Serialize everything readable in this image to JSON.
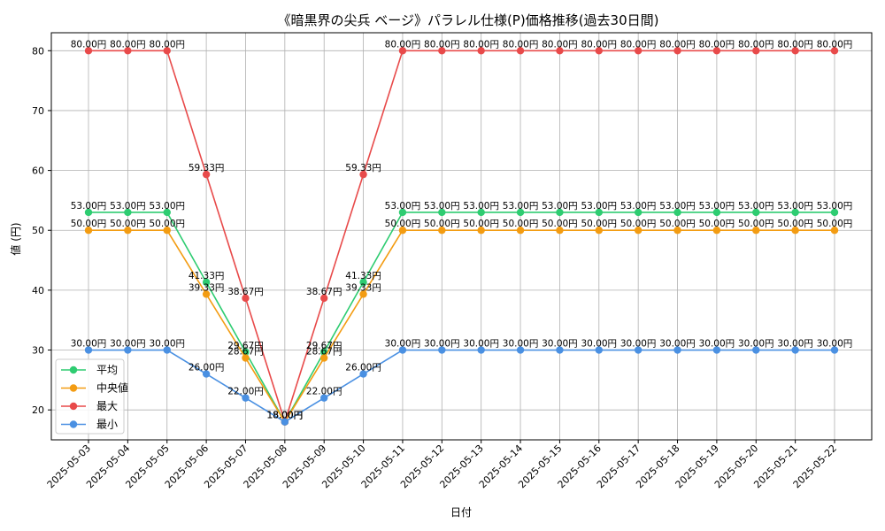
{
  "chart_data": {
    "type": "line",
    "title": "《暗黒界の尖兵 ベージ》パラレル仕様(P)価格推移(過去30日間)",
    "xlabel": "日付",
    "ylabel": "値 (円)",
    "ylim": [
      15,
      83
    ],
    "yticks": [
      20,
      30,
      40,
      50,
      60,
      70,
      80
    ],
    "grid": true,
    "legend_position": "lower-left",
    "label_suffix": "円",
    "categories": [
      "2025-05-03",
      "2025-05-04",
      "2025-05-05",
      "2025-05-06",
      "2025-05-07",
      "2025-05-08",
      "2025-05-09",
      "2025-05-10",
      "2025-05-11",
      "2025-05-12",
      "2025-05-13",
      "2025-05-14",
      "2025-05-15",
      "2025-05-16",
      "2025-05-17",
      "2025-05-18",
      "2025-05-19",
      "2025-05-20",
      "2025-05-21",
      "2025-05-22"
    ],
    "series": [
      {
        "name": "平均",
        "color": "#2ecc71",
        "values": [
          53,
          53,
          53,
          41.33,
          29.67,
          18,
          29.67,
          41.33,
          53,
          53,
          53,
          53,
          53,
          53,
          53,
          53,
          53,
          53,
          53,
          53
        ]
      },
      {
        "name": "中央値",
        "color": "#f39c12",
        "values": [
          50,
          50,
          50,
          39.33,
          28.67,
          18,
          28.67,
          39.33,
          50,
          50,
          50,
          50,
          50,
          50,
          50,
          50,
          50,
          50,
          50,
          50
        ]
      },
      {
        "name": "最大",
        "color": "#e84a4a",
        "values": [
          80,
          80,
          80,
          59.33,
          38.67,
          18,
          38.67,
          59.33,
          80,
          80,
          80,
          80,
          80,
          80,
          80,
          80,
          80,
          80,
          80,
          80
        ]
      },
      {
        "name": "最小",
        "color": "#4a90e2",
        "values": [
          30,
          30,
          30,
          26,
          22,
          18,
          22,
          26,
          30,
          30,
          30,
          30,
          30,
          30,
          30,
          30,
          30,
          30,
          30,
          30
        ]
      }
    ]
  }
}
